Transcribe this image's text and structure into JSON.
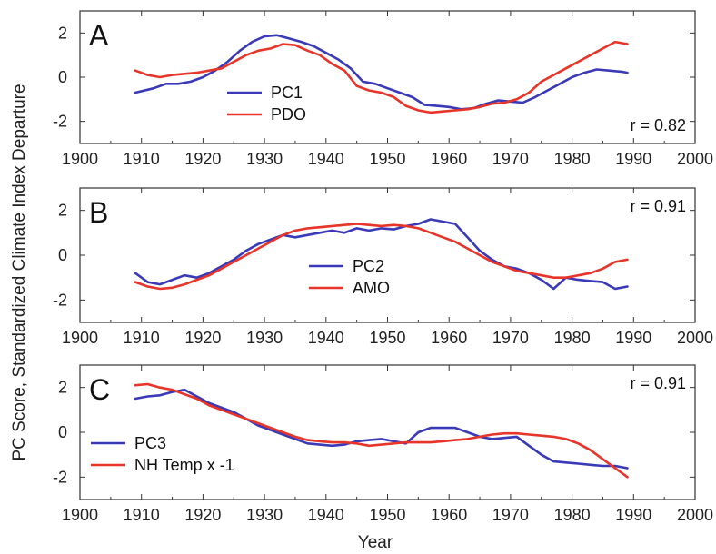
{
  "figure": {
    "ylabel": "PC Score, Standardized Climate Index Departure",
    "xlabel": "Year"
  },
  "chart_data": [
    {
      "type": "line",
      "panel_label": "A",
      "correlation": "r = 0.82",
      "xlim": [
        1900,
        2000
      ],
      "ylim": [
        -3,
        3
      ],
      "xticks": [
        "1900",
        "1910",
        "1920",
        "1930",
        "1940",
        "1950",
        "1960",
        "1970",
        "1980",
        "1990",
        "2000"
      ],
      "yticks": [
        "2",
        "0",
        "-2"
      ],
      "legend_position": "center-left",
      "series": [
        {
          "name": "PC1",
          "color": "#3a3ab8",
          "x": [
            1909,
            1912,
            1914,
            1916,
            1918,
            1920,
            1922,
            1924,
            1926,
            1928,
            1930,
            1932,
            1934,
            1936,
            1938,
            1940,
            1942,
            1944,
            1946,
            1948,
            1950,
            1952,
            1954,
            1956,
            1958,
            1960,
            1962,
            1964,
            1966,
            1968,
            1970,
            1972,
            1974,
            1976,
            1978,
            1980,
            1982,
            1984,
            1986,
            1988,
            1989
          ],
          "y": [
            -0.7,
            -0.5,
            -0.3,
            -0.3,
            -0.2,
            0.0,
            0.3,
            0.7,
            1.2,
            1.6,
            1.85,
            1.9,
            1.75,
            1.6,
            1.4,
            1.1,
            0.8,
            0.4,
            -0.2,
            -0.3,
            -0.5,
            -0.7,
            -0.9,
            -1.25,
            -1.3,
            -1.35,
            -1.45,
            -1.4,
            -1.2,
            -1.05,
            -1.1,
            -1.15,
            -0.9,
            -0.6,
            -0.3,
            0.0,
            0.2,
            0.35,
            0.3,
            0.25,
            0.2
          ]
        },
        {
          "name": "PDO",
          "color": "#e8352a",
          "x": [
            1909,
            1911,
            1913,
            1915,
            1917,
            1919,
            1921,
            1923,
            1925,
            1927,
            1929,
            1931,
            1933,
            1935,
            1937,
            1939,
            1941,
            1943,
            1945,
            1947,
            1949,
            1951,
            1953,
            1955,
            1957,
            1959,
            1961,
            1963,
            1965,
            1967,
            1969,
            1971,
            1973,
            1975,
            1977,
            1979,
            1981,
            1983,
            1985,
            1987,
            1989
          ],
          "y": [
            0.3,
            0.1,
            0.0,
            0.1,
            0.15,
            0.2,
            0.3,
            0.4,
            0.7,
            1.0,
            1.2,
            1.3,
            1.5,
            1.45,
            1.2,
            1.0,
            0.6,
            0.3,
            -0.4,
            -0.6,
            -0.7,
            -0.9,
            -1.3,
            -1.5,
            -1.6,
            -1.55,
            -1.5,
            -1.45,
            -1.35,
            -1.2,
            -1.15,
            -1.0,
            -0.7,
            -0.2,
            0.1,
            0.4,
            0.7,
            1.0,
            1.3,
            1.6,
            1.5
          ]
        }
      ]
    },
    {
      "type": "line",
      "panel_label": "B",
      "correlation": "r = 0.91",
      "xlim": [
        1900,
        2000
      ],
      "ylim": [
        -3,
        3
      ],
      "xticks": [
        "1900",
        "1910",
        "1920",
        "1930",
        "1940",
        "1950",
        "1960",
        "1970",
        "1980",
        "1990",
        "2000"
      ],
      "yticks": [
        "2",
        "0",
        "-2"
      ],
      "legend_position": "center",
      "series": [
        {
          "name": "PC2",
          "color": "#3a3ab8",
          "x": [
            1909,
            1911,
            1913,
            1915,
            1917,
            1919,
            1921,
            1923,
            1925,
            1927,
            1929,
            1931,
            1933,
            1935,
            1937,
            1939,
            1941,
            1943,
            1945,
            1947,
            1949,
            1951,
            1953,
            1955,
            1957,
            1959,
            1961,
            1963,
            1965,
            1967,
            1969,
            1971,
            1973,
            1975,
            1977,
            1979,
            1981,
            1983,
            1985,
            1987,
            1989
          ],
          "y": [
            -0.8,
            -1.2,
            -1.3,
            -1.1,
            -0.9,
            -1.0,
            -0.8,
            -0.5,
            -0.2,
            0.2,
            0.5,
            0.7,
            0.9,
            0.8,
            0.9,
            1.0,
            1.1,
            1.0,
            1.2,
            1.1,
            1.2,
            1.15,
            1.3,
            1.4,
            1.6,
            1.5,
            1.4,
            0.8,
            0.2,
            -0.2,
            -0.5,
            -0.6,
            -0.8,
            -1.1,
            -1.5,
            -1.0,
            -1.1,
            -1.15,
            -1.2,
            -1.5,
            -1.4
          ]
        },
        {
          "name": "AMO",
          "color": "#e8352a",
          "x": [
            1909,
            1911,
            1913,
            1915,
            1917,
            1919,
            1921,
            1923,
            1925,
            1927,
            1929,
            1931,
            1933,
            1935,
            1937,
            1939,
            1941,
            1943,
            1945,
            1947,
            1949,
            1951,
            1953,
            1955,
            1957,
            1959,
            1961,
            1963,
            1965,
            1967,
            1969,
            1971,
            1973,
            1975,
            1977,
            1979,
            1981,
            1983,
            1985,
            1987,
            1989
          ],
          "y": [
            -1.2,
            -1.4,
            -1.5,
            -1.45,
            -1.3,
            -1.1,
            -0.9,
            -0.6,
            -0.3,
            0.0,
            0.3,
            0.6,
            0.9,
            1.1,
            1.2,
            1.25,
            1.3,
            1.35,
            1.4,
            1.35,
            1.3,
            1.35,
            1.3,
            1.2,
            1.0,
            0.8,
            0.6,
            0.3,
            0.0,
            -0.3,
            -0.5,
            -0.7,
            -0.8,
            -0.9,
            -1.0,
            -1.0,
            -0.9,
            -0.8,
            -0.6,
            -0.3,
            -0.2
          ]
        }
      ]
    },
    {
      "type": "line",
      "panel_label": "C",
      "correlation": "r = 0.91",
      "xlim": [
        1900,
        2000
      ],
      "ylim": [
        -3,
        3
      ],
      "xticks": [
        "1900",
        "1910",
        "1920",
        "1930",
        "1940",
        "1950",
        "1960",
        "1970",
        "1980",
        "1990",
        "2000"
      ],
      "yticks": [
        "2",
        "0",
        "-2"
      ],
      "legend_position": "bottom-left",
      "series": [
        {
          "name": "PC3",
          "color": "#3a3ab8",
          "x": [
            1909,
            1911,
            1913,
            1915,
            1917,
            1919,
            1921,
            1923,
            1925,
            1927,
            1929,
            1931,
            1933,
            1935,
            1937,
            1939,
            1941,
            1943,
            1945,
            1947,
            1949,
            1951,
            1953,
            1955,
            1957,
            1959,
            1961,
            1963,
            1965,
            1967,
            1969,
            1971,
            1973,
            1975,
            1977,
            1979,
            1981,
            1983,
            1985,
            1987,
            1989
          ],
          "y": [
            1.5,
            1.6,
            1.65,
            1.8,
            1.9,
            1.6,
            1.3,
            1.1,
            0.9,
            0.6,
            0.3,
            0.1,
            -0.1,
            -0.3,
            -0.5,
            -0.55,
            -0.6,
            -0.55,
            -0.4,
            -0.35,
            -0.3,
            -0.4,
            -0.5,
            0.0,
            0.2,
            0.2,
            0.2,
            0.0,
            -0.2,
            -0.3,
            -0.25,
            -0.2,
            -0.6,
            -1.0,
            -1.3,
            -1.35,
            -1.4,
            -1.45,
            -1.5,
            -1.5,
            -1.6
          ]
        },
        {
          "name": "NH Temp x -1",
          "color": "#e8352a",
          "x": [
            1909,
            1911,
            1913,
            1915,
            1917,
            1919,
            1921,
            1923,
            1925,
            1927,
            1929,
            1931,
            1933,
            1935,
            1937,
            1939,
            1941,
            1943,
            1945,
            1947,
            1949,
            1951,
            1953,
            1955,
            1957,
            1959,
            1961,
            1963,
            1965,
            1967,
            1969,
            1971,
            1973,
            1975,
            1977,
            1979,
            1981,
            1983,
            1985,
            1987,
            1989
          ],
          "y": [
            2.1,
            2.15,
            2.0,
            1.9,
            1.7,
            1.5,
            1.2,
            1.0,
            0.8,
            0.6,
            0.4,
            0.2,
            0.0,
            -0.2,
            -0.35,
            -0.4,
            -0.45,
            -0.45,
            -0.5,
            -0.6,
            -0.55,
            -0.5,
            -0.45,
            -0.45,
            -0.45,
            -0.4,
            -0.35,
            -0.3,
            -0.2,
            -0.1,
            -0.05,
            -0.05,
            -0.1,
            -0.15,
            -0.2,
            -0.3,
            -0.5,
            -0.8,
            -1.2,
            -1.6,
            -2.0
          ]
        }
      ]
    }
  ]
}
